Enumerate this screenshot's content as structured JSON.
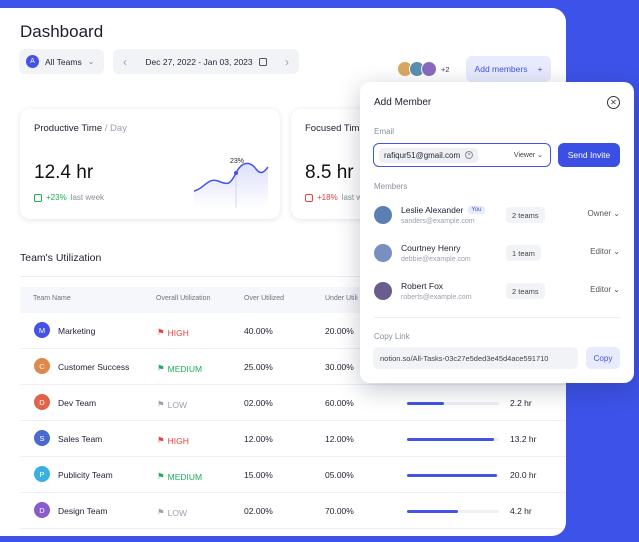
{
  "header": {
    "title": "Dashboard",
    "team_filter": {
      "avatar_letter": "A",
      "label": "All Teams"
    },
    "date_range": "Dec 27, 2022 - Jan 03, 2023",
    "extra_members": "+2",
    "add_members": "Add members"
  },
  "cards": [
    {
      "title": "Productive Time",
      "title_suffix": "/ Day",
      "value": "12.4 hr",
      "delta": "+23%",
      "delta_label": "last week",
      "spark_label": "23%",
      "trend": "up"
    },
    {
      "title": "Focused Tim",
      "value": "8.5 hr",
      "delta": "+18%",
      "delta_label": "last w",
      "trend": "down"
    }
  ],
  "utilization": {
    "title": "Team's Utilization",
    "columns": [
      "Team Name",
      "Overall Utilization",
      "Over Utilized",
      "Under Utili"
    ],
    "rows": [
      {
        "letter": "M",
        "color": "#4452e6",
        "name": "Marketing",
        "level": "HIGH",
        "over": "40.00%",
        "under": "20.00%",
        "hours": "",
        "bar": 0
      },
      {
        "letter": "C",
        "color": "#e0874a",
        "name": "Customer Success",
        "level": "MEDIUM",
        "over": "25.00%",
        "under": "30.00%",
        "hours": "",
        "bar": 0
      },
      {
        "letter": "D",
        "color": "#e0634a",
        "name": "Dev Team",
        "level": "LOW",
        "over": "02.00%",
        "under": "60.00%",
        "hours": "2.2 hr",
        "bar": 0.4
      },
      {
        "letter": "S",
        "color": "#4a6ad0",
        "name": "Sales Team",
        "level": "HIGH",
        "over": "12.00%",
        "under": "12.00%",
        "hours": "13.2 hr",
        "bar": 0.95
      },
      {
        "letter": "P",
        "color": "#3bb0e0",
        "name": "Publicity Team",
        "level": "MEDIUM",
        "over": "15.00%",
        "under": "05.00%",
        "hours": "20.0 hr",
        "bar": 0.98
      },
      {
        "letter": "D",
        "color": "#8a5ad0",
        "name": "Design Team",
        "level": "LOW",
        "over": "02.00%",
        "under": "70.00%",
        "hours": "4.2 hr",
        "bar": 0.55
      }
    ]
  },
  "level_colors": {
    "HIGH": "#e4423c",
    "MEDIUM": "#1eae55",
    "LOW": "#9aa0ad"
  },
  "modal": {
    "title": "Add Member",
    "email_label": "Email",
    "email_chip": "rafiqur51@gmail.com",
    "role_select": "Viewer",
    "send_label": "Send Invite",
    "members_label": "Members",
    "members": [
      {
        "name": "Leslie Alexander",
        "you": "You",
        "email": "sanders@example.com",
        "teams": "2 teams",
        "role": "Owner",
        "avatar_color": "#5b7fb5"
      },
      {
        "name": "Courtney Henry",
        "you": "",
        "email": "debbie@example.com",
        "teams": "1 team",
        "role": "Editor",
        "avatar_color": "#7a8fc0"
      },
      {
        "name": "Robert Fox",
        "you": "",
        "email": "roberts@example.com",
        "teams": "2 teams",
        "role": "Editor",
        "avatar_color": "#6a5c8e"
      }
    ],
    "copy_label": "Copy Link",
    "link": "notion.so/All-Tasks-03c27e5ded3e45d4ace591710",
    "copy_button": "Copy"
  }
}
